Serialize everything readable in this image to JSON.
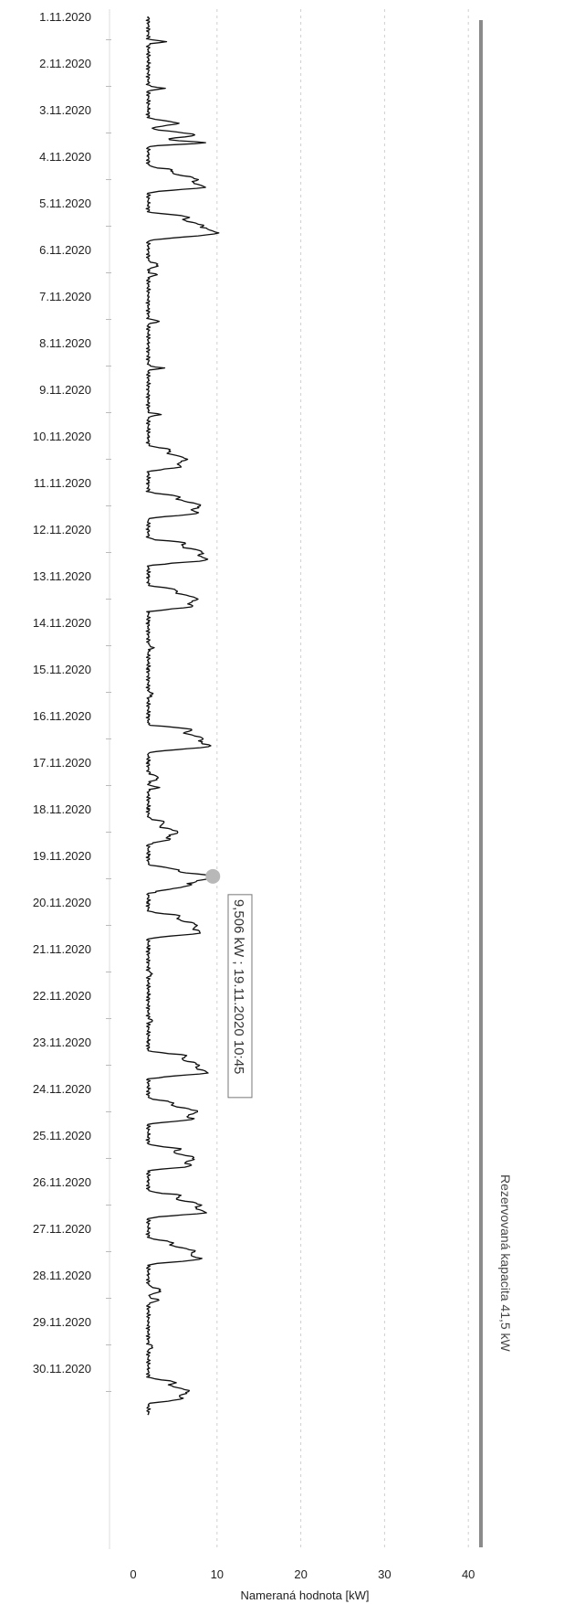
{
  "chart_data": {
    "type": "line",
    "orientation": "horizontal-value-axis",
    "title": "",
    "xlabel": "Nameraná hodnota [kW]",
    "ylabel": "",
    "xlim": [
      0,
      45
    ],
    "x_ticks": [
      "0",
      "10",
      "20",
      "30",
      "40"
    ],
    "y_ticks": [
      "1.11.2020",
      "2.11.2020",
      "3.11.2020",
      "4.11.2020",
      "5.11.2020",
      "6.11.2020",
      "7.11.2020",
      "8.11.2020",
      "9.11.2020",
      "10.11.2020",
      "11.11.2020",
      "12.11.2020",
      "13.11.2020",
      "14.11.2020",
      "15.11.2020",
      "16.11.2020",
      "17.11.2020",
      "18.11.2020",
      "19.11.2020",
      "20.11.2020",
      "21.11.2020",
      "22.11.2020",
      "23.11.2020",
      "24.11.2020",
      "25.11.2020",
      "26.11.2020",
      "27.11.2020",
      "28.11.2020",
      "29.11.2020",
      "30.11.2020"
    ],
    "grid": true,
    "colors": {
      "series": "#111111",
      "reference": "#8a8a8a",
      "marker": "#b8b8b8",
      "grid": "#cfcfcf"
    },
    "reference_line": {
      "value": 41.5,
      "label": "Rezervovaná kapacita 41,5 kW"
    },
    "highlight": {
      "date": "19.11.2020",
      "hour": 10.75,
      "value": 9.506,
      "label": "9,506 kW ; 19.11.2020 10:45"
    },
    "series": [
      {
        "days": [
          {
            "date": "1.11.2020",
            "base": 1.8,
            "bumps": [
              [
                13,
                2.2,
                0.5
              ]
            ]
          },
          {
            "date": "2.11.2020",
            "base": 1.8,
            "bumps": [
              [
                13,
                2.0,
                0.5
              ]
            ]
          },
          {
            "date": "3.11.2020",
            "base": 1.8,
            "bumps": [
              [
                7,
                3.5,
                1.2
              ],
              [
                13,
                5.5,
                1.5
              ],
              [
                17,
                6.8,
                0.8
              ]
            ]
          },
          {
            "date": "4.11.2020",
            "base": 1.8,
            "bumps": [
              [
                7,
                2.0,
                1.0
              ],
              [
                12,
                5.8,
                2.5
              ],
              [
                16,
                5.0,
                1.2
              ]
            ]
          },
          {
            "date": "5.11.2020",
            "base": 1.8,
            "bumps": [
              [
                7,
                3.0,
                1.0
              ],
              [
                12,
                6.5,
                3.0
              ],
              [
                16,
                5.2,
                1.5
              ]
            ]
          },
          {
            "date": "6.11.2020",
            "base": 1.8,
            "bumps": [
              [
                8,
                1.2,
                1.0
              ],
              [
                13,
                1.0,
                0.6
              ]
            ]
          },
          {
            "date": "7.11.2020",
            "base": 1.8,
            "bumps": [
              [
                13,
                1.5,
                0.5
              ]
            ]
          },
          {
            "date": "8.11.2020",
            "base": 1.8,
            "bumps": [
              [
                13,
                1.8,
                0.5
              ]
            ]
          },
          {
            "date": "9.11.2020",
            "base": 1.8,
            "bumps": [
              [
                13,
                1.5,
                0.5
              ]
            ]
          },
          {
            "date": "10.11.2020",
            "base": 1.8,
            "bumps": [
              [
                7,
                2.0,
                1.0
              ],
              [
                12,
                4.5,
                2.5
              ],
              [
                16,
                2.5,
                1.0
              ]
            ]
          },
          {
            "date": "11.11.2020",
            "base": 1.8,
            "bumps": [
              [
                7,
                2.2,
                1.0
              ],
              [
                12,
                6.2,
                2.8
              ],
              [
                16,
                3.5,
                1.0
              ]
            ]
          },
          {
            "date": "12.11.2020",
            "base": 1.8,
            "bumps": [
              [
                7,
                3.0,
                1.0
              ],
              [
                12,
                6.5,
                2.8
              ],
              [
                16,
                4.5,
                1.2
              ]
            ]
          },
          {
            "date": "13.11.2020",
            "base": 1.8,
            "bumps": [
              [
                7,
                2.0,
                1.0
              ],
              [
                12,
                5.8,
                2.8
              ],
              [
                16,
                3.0,
                1.0
              ]
            ]
          },
          {
            "date": "14.11.2020",
            "base": 1.8,
            "bumps": [
              [
                13,
                0.5,
                0.8
              ]
            ]
          },
          {
            "date": "15.11.2020",
            "base": 1.8,
            "bumps": [
              [
                13,
                0.5,
                0.8
              ]
            ]
          },
          {
            "date": "16.11.2020",
            "base": 1.8,
            "bumps": [
              [
                7,
                3.5,
                1.0
              ],
              [
                12,
                6.5,
                3.0
              ],
              [
                16,
                4.5,
                1.2
              ]
            ]
          },
          {
            "date": "17.11.2020",
            "base": 1.8,
            "bumps": [
              [
                8,
                1.2,
                1.2
              ],
              [
                13,
                1.2,
                0.6
              ]
            ]
          },
          {
            "date": "18.11.2020",
            "base": 1.8,
            "bumps": [
              [
                7,
                2.0,
                1.0
              ],
              [
                12,
                3.5,
                2.0
              ],
              [
                16,
                2.0,
                1.0
              ]
            ]
          },
          {
            "date": "19.11.2020",
            "base": 1.8,
            "bumps": [
              [
                7,
                3.0,
                1.0
              ],
              [
                10.75,
                7.7,
                1.6
              ],
              [
                15,
                5.0,
                2.0
              ]
            ]
          },
          {
            "date": "20.11.2020",
            "base": 1.8,
            "bumps": [
              [
                7,
                2.5,
                1.0
              ],
              [
                12,
                5.8,
                2.8
              ],
              [
                16,
                4.0,
                1.2
              ]
            ]
          },
          {
            "date": "21.11.2020",
            "base": 1.8,
            "bumps": [
              [
                13,
                0.5,
                0.6
              ]
            ]
          },
          {
            "date": "22.11.2020",
            "base": 1.8,
            "bumps": [
              [
                13,
                0.5,
                0.6
              ]
            ]
          },
          {
            "date": "23.11.2020",
            "base": 1.8,
            "bumps": [
              [
                7,
                3.0,
                1.0
              ],
              [
                12,
                6.0,
                3.0
              ],
              [
                16,
                4.5,
                1.2
              ]
            ]
          },
          {
            "date": "24.11.2020",
            "base": 1.8,
            "bumps": [
              [
                7,
                2.0,
                1.0
              ],
              [
                12,
                5.8,
                2.5
              ],
              [
                16,
                3.5,
                1.0
              ]
            ]
          },
          {
            "date": "25.11.2020",
            "base": 1.8,
            "bumps": [
              [
                7,
                3.0,
                1.0
              ],
              [
                12,
                5.5,
                2.5
              ],
              [
                16,
                3.5,
                1.0
              ]
            ]
          },
          {
            "date": "26.11.2020",
            "base": 1.8,
            "bumps": [
              [
                7,
                3.0,
                1.0
              ],
              [
                12,
                6.2,
                2.5
              ],
              [
                16,
                5.0,
                1.2
              ]
            ]
          },
          {
            "date": "27.11.2020",
            "base": 1.8,
            "bumps": [
              [
                7,
                2.0,
                1.0
              ],
              [
                12,
                5.5,
                2.5
              ],
              [
                16,
                4.5,
                1.2
              ]
            ]
          },
          {
            "date": "28.11.2020",
            "base": 1.8,
            "bumps": [
              [
                8,
                1.5,
                1.2
              ],
              [
                13,
                1.2,
                0.8
              ]
            ]
          },
          {
            "date": "29.11.2020",
            "base": 1.8,
            "bumps": [
              [
                13,
                0.6,
                0.6
              ]
            ]
          },
          {
            "date": "30.11.2020",
            "base": 1.8,
            "bumps": [
              [
                7,
                2.5,
                1.0
              ],
              [
                12,
                4.8,
                2.5
              ],
              [
                16,
                2.5,
                1.0
              ]
            ]
          }
        ]
      }
    ]
  }
}
